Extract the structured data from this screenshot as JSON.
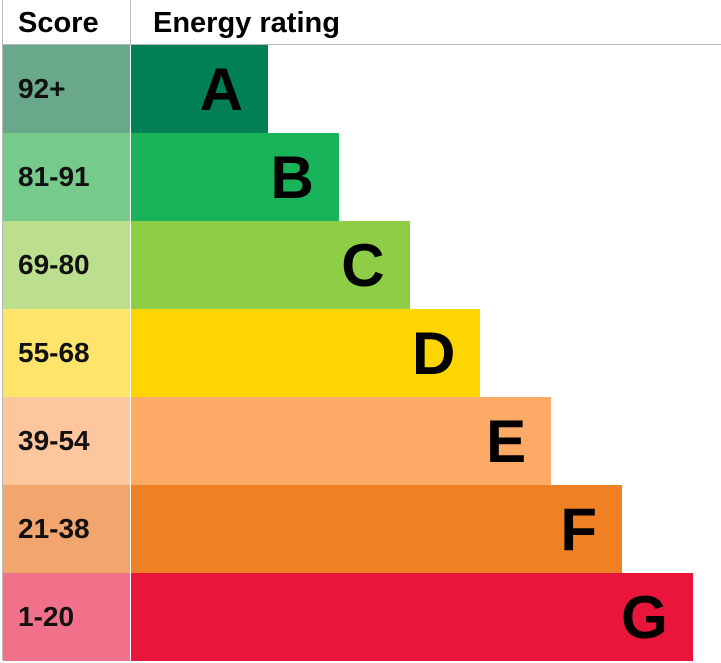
{
  "header": {
    "score": "Score",
    "rating": "Energy rating"
  },
  "rows": [
    {
      "score": "92+",
      "band": "A",
      "score_color": "#69a88a",
      "band_color": "#008054"
    },
    {
      "score": "81-91",
      "band": "B",
      "score_color": "#76cb8c",
      "band_color": "#19b459"
    },
    {
      "score": "69-80",
      "band": "C",
      "score_color": "#bcdf8e",
      "band_color": "#8dce46"
    },
    {
      "score": "55-68",
      "band": "D",
      "score_color": "#ffe46c",
      "band_color": "#ffd500"
    },
    {
      "score": "39-54",
      "band": "E",
      "score_color": "#fdc69c",
      "band_color": "#fcaa65"
    },
    {
      "score": "21-38",
      "band": "F",
      "score_color": "#f2a66e",
      "band_color": "#ef8023"
    },
    {
      "score": "1-20",
      "band": "G",
      "score_color": "#f2718a",
      "band_color": "#e9153b"
    }
  ]
}
